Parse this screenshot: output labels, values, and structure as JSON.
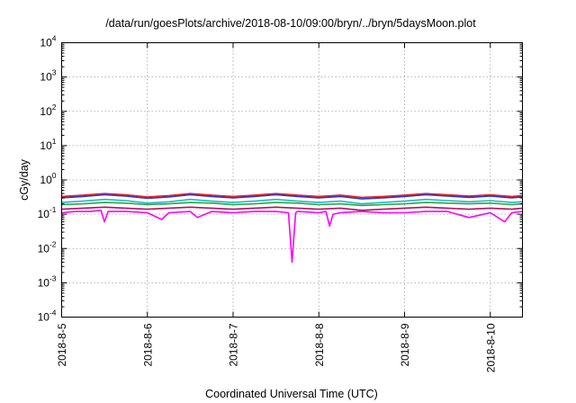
{
  "chart_data": {
    "type": "line",
    "title": "/data/run/goesPlots/archive/2018-08-10/09:00/bryn/../bryn/5daysMoon.plot",
    "xlabel": "Coordinated Universal Time (UTC)",
    "ylabel": "cGy/day",
    "yscale": "log",
    "ylim": [
      0.0001,
      10000
    ],
    "xlim": [
      "2018-08-05T00:00",
      "2018-08-10T09:00"
    ],
    "grid": true,
    "legend": "none",
    "y_ticks": [
      {
        "value": 0.0001,
        "base": "10",
        "exp": "-4"
      },
      {
        "value": 0.001,
        "base": "10",
        "exp": "-3"
      },
      {
        "value": 0.01,
        "base": "10",
        "exp": "-2"
      },
      {
        "value": 0.1,
        "base": "10",
        "exp": "-1"
      },
      {
        "value": 1,
        "base": "10",
        "exp": "0"
      },
      {
        "value": 10,
        "base": "10",
        "exp": "1"
      },
      {
        "value": 100,
        "base": "10",
        "exp": "2"
      },
      {
        "value": 1000,
        "base": "10",
        "exp": "3"
      },
      {
        "value": 10000,
        "base": "10",
        "exp": "4"
      }
    ],
    "x_ticks": [
      {
        "value": "2018-08-05T00:00",
        "label": "2018-8-5"
      },
      {
        "value": "2018-08-06T00:00",
        "label": "2018-8-6"
      },
      {
        "value": "2018-08-07T00:00",
        "label": "2018-8-7"
      },
      {
        "value": "2018-08-08T00:00",
        "label": "2018-8-8"
      },
      {
        "value": "2018-08-09T00:00",
        "label": "2018-8-9"
      },
      {
        "value": "2018-08-10T00:00",
        "label": "2018-8-10"
      }
    ],
    "series": [
      {
        "color": "#e8221f",
        "x": [
          "2018-08-05T00:00",
          "2018-08-05T06:00",
          "2018-08-05T12:00",
          "2018-08-05T18:00",
          "2018-08-06T00:00",
          "2018-08-06T06:00",
          "2018-08-06T12:00",
          "2018-08-06T18:00",
          "2018-08-07T00:00",
          "2018-08-07T06:00",
          "2018-08-07T12:00",
          "2018-08-07T18:00",
          "2018-08-08T00:00",
          "2018-08-08T06:00",
          "2018-08-08T12:00",
          "2018-08-08T18:00",
          "2018-08-09T00:00",
          "2018-08-09T06:00",
          "2018-08-09T12:00",
          "2018-08-09T18:00",
          "2018-08-10T00:00",
          "2018-08-10T06:00",
          "2018-08-10T09:00"
        ],
        "y": [
          0.33,
          0.36,
          0.4,
          0.37,
          0.32,
          0.35,
          0.4,
          0.36,
          0.33,
          0.36,
          0.4,
          0.36,
          0.33,
          0.36,
          0.31,
          0.33,
          0.36,
          0.4,
          0.37,
          0.34,
          0.37,
          0.33,
          0.35
        ]
      },
      {
        "color": "#3333cc",
        "x": [
          "2018-08-05T00:00",
          "2018-08-05T06:00",
          "2018-08-05T12:00",
          "2018-08-05T18:00",
          "2018-08-06T00:00",
          "2018-08-06T06:00",
          "2018-08-06T12:00",
          "2018-08-06T18:00",
          "2018-08-07T00:00",
          "2018-08-07T06:00",
          "2018-08-07T12:00",
          "2018-08-07T18:00",
          "2018-08-08T00:00",
          "2018-08-08T06:00",
          "2018-08-08T12:00",
          "2018-08-08T18:00",
          "2018-08-09T00:00",
          "2018-08-09T06:00",
          "2018-08-09T12:00",
          "2018-08-09T18:00",
          "2018-08-10T00:00",
          "2018-08-10T06:00",
          "2018-08-10T09:00"
        ],
        "y": [
          0.3,
          0.33,
          0.37,
          0.34,
          0.29,
          0.32,
          0.37,
          0.33,
          0.3,
          0.33,
          0.37,
          0.33,
          0.3,
          0.33,
          0.28,
          0.3,
          0.33,
          0.37,
          0.34,
          0.31,
          0.34,
          0.3,
          0.32
        ]
      },
      {
        "color": "#20b8c8",
        "x": [
          "2018-08-05T00:00",
          "2018-08-05T06:00",
          "2018-08-05T12:00",
          "2018-08-05T18:00",
          "2018-08-06T00:00",
          "2018-08-06T06:00",
          "2018-08-06T12:00",
          "2018-08-06T18:00",
          "2018-08-07T00:00",
          "2018-08-07T06:00",
          "2018-08-07T12:00",
          "2018-08-07T18:00",
          "2018-08-08T00:00",
          "2018-08-08T06:00",
          "2018-08-08T12:00",
          "2018-08-08T18:00",
          "2018-08-09T00:00",
          "2018-08-09T06:00",
          "2018-08-09T12:00",
          "2018-08-09T18:00",
          "2018-08-10T00:00",
          "2018-08-10T06:00",
          "2018-08-10T09:00"
        ],
        "y": [
          0.22,
          0.24,
          0.27,
          0.25,
          0.21,
          0.23,
          0.27,
          0.24,
          0.22,
          0.24,
          0.27,
          0.24,
          0.22,
          0.24,
          0.2,
          0.22,
          0.24,
          0.27,
          0.25,
          0.23,
          0.25,
          0.22,
          0.23
        ]
      },
      {
        "color": "#22aa44",
        "x": [
          "2018-08-05T00:00",
          "2018-08-05T06:00",
          "2018-08-05T12:00",
          "2018-08-05T18:00",
          "2018-08-06T00:00",
          "2018-08-06T06:00",
          "2018-08-06T12:00",
          "2018-08-06T18:00",
          "2018-08-07T00:00",
          "2018-08-07T06:00",
          "2018-08-07T12:00",
          "2018-08-07T18:00",
          "2018-08-08T00:00",
          "2018-08-08T06:00",
          "2018-08-08T12:00",
          "2018-08-08T18:00",
          "2018-08-09T00:00",
          "2018-08-09T06:00",
          "2018-08-09T12:00",
          "2018-08-09T18:00",
          "2018-08-10T00:00",
          "2018-08-10T06:00",
          "2018-08-10T09:00"
        ],
        "y": [
          0.19,
          0.2,
          0.22,
          0.21,
          0.19,
          0.2,
          0.22,
          0.21,
          0.19,
          0.2,
          0.22,
          0.21,
          0.19,
          0.2,
          0.18,
          0.19,
          0.2,
          0.22,
          0.21,
          0.2,
          0.21,
          0.19,
          0.2
        ]
      },
      {
        "color": "#b01060",
        "x": [
          "2018-08-05T00:00",
          "2018-08-05T06:00",
          "2018-08-05T12:00",
          "2018-08-05T18:00",
          "2018-08-06T00:00",
          "2018-08-06T06:00",
          "2018-08-06T12:00",
          "2018-08-06T18:00",
          "2018-08-07T00:00",
          "2018-08-07T06:00",
          "2018-08-07T12:00",
          "2018-08-07T18:00",
          "2018-08-08T00:00",
          "2018-08-08T06:00",
          "2018-08-08T12:00",
          "2018-08-08T18:00",
          "2018-08-09T00:00",
          "2018-08-09T06:00",
          "2018-08-09T12:00",
          "2018-08-09T18:00",
          "2018-08-10T00:00",
          "2018-08-10T06:00",
          "2018-08-10T09:00"
        ],
        "y": [
          0.14,
          0.15,
          0.16,
          0.15,
          0.14,
          0.15,
          0.16,
          0.15,
          0.14,
          0.15,
          0.16,
          0.15,
          0.14,
          0.15,
          0.13,
          0.14,
          0.15,
          0.16,
          0.15,
          0.14,
          0.15,
          0.14,
          0.15
        ]
      },
      {
        "color": "#ff00ff",
        "x": [
          "2018-08-05T00:00",
          "2018-08-05T04:00",
          "2018-08-05T08:00",
          "2018-08-05T11:00",
          "2018-08-05T12:00",
          "2018-08-05T13:00",
          "2018-08-05T18:00",
          "2018-08-06T00:00",
          "2018-08-06T04:00",
          "2018-08-06T06:00",
          "2018-08-06T12:00",
          "2018-08-06T14:00",
          "2018-08-06T18:00",
          "2018-08-07T00:00",
          "2018-08-07T06:00",
          "2018-08-07T12:00",
          "2018-08-07T15:30",
          "2018-08-07T16:30",
          "2018-08-07T17:30",
          "2018-08-07T18:00",
          "2018-08-08T00:00",
          "2018-08-08T02:00",
          "2018-08-08T03:00",
          "2018-08-08T04:00",
          "2018-08-08T06:00",
          "2018-08-08T12:00",
          "2018-08-08T18:00",
          "2018-08-09T00:00",
          "2018-08-09T06:00",
          "2018-08-09T12:00",
          "2018-08-09T18:00",
          "2018-08-10T00:00",
          "2018-08-10T04:00",
          "2018-08-10T06:00",
          "2018-08-10T09:00"
        ],
        "y": [
          0.11,
          0.12,
          0.12,
          0.13,
          0.06,
          0.12,
          0.12,
          0.11,
          0.07,
          0.11,
          0.12,
          0.08,
          0.12,
          0.11,
          0.12,
          0.12,
          0.11,
          0.004,
          0.11,
          0.12,
          0.11,
          0.12,
          0.045,
          0.1,
          0.11,
          0.12,
          0.11,
          0.11,
          0.12,
          0.12,
          0.08,
          0.11,
          0.06,
          0.11,
          0.12
        ]
      }
    ]
  }
}
